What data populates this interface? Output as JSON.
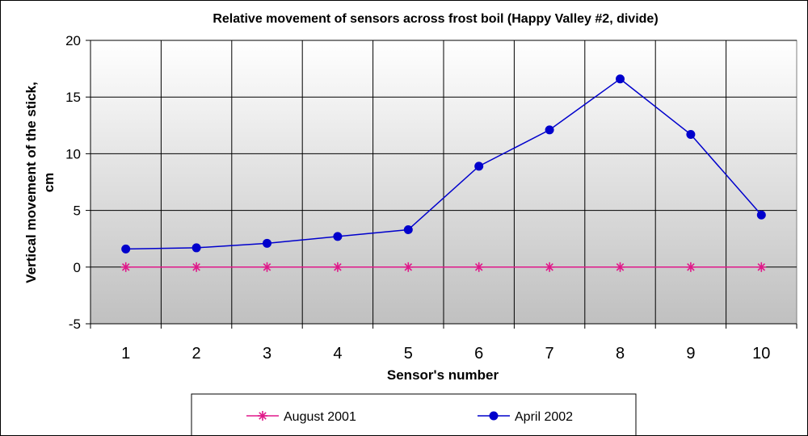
{
  "chart_data": {
    "type": "line",
    "title": "Relative movement of sensors across frost boil (Happy Valley #2, divide)",
    "xlabel": "Sensor's number",
    "ylabel_line1": "Vertical movement of the stick,",
    "ylabel_line2": "cm",
    "categories": [
      "1",
      "2",
      "3",
      "4",
      "5",
      "6",
      "7",
      "8",
      "9",
      "10"
    ],
    "ylim": [
      -5,
      20
    ],
    "yticks": [
      -5,
      0,
      5,
      10,
      15,
      20
    ],
    "grid": true,
    "legend_position": "bottom",
    "series": [
      {
        "name": "August 2001",
        "color": "#e0198a",
        "marker": "asterisk",
        "values": [
          0,
          0,
          0,
          0,
          0,
          0,
          0,
          0,
          0,
          0
        ]
      },
      {
        "name": "April 2002",
        "color": "#0000cc",
        "marker": "circle",
        "values": [
          1.6,
          1.7,
          2.1,
          2.7,
          3.3,
          8.9,
          12.1,
          16.6,
          11.7,
          4.6
        ]
      }
    ]
  }
}
